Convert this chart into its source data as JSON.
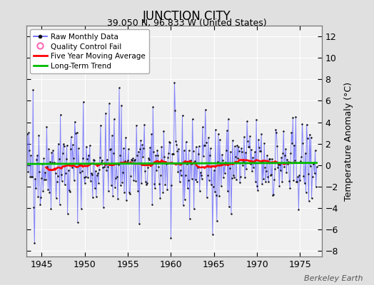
{
  "title": "JUNCTION CITY",
  "subtitle": "39.050 N, 96.833 W (United States)",
  "ylabel": "Temperature Anomaly (°C)",
  "watermark": "Berkeley Earth",
  "xlim": [
    1943.2,
    1977.5
  ],
  "ylim": [
    -8.5,
    13.0
  ],
  "yticks": [
    -8,
    -6,
    -4,
    -2,
    0,
    2,
    4,
    6,
    8,
    10,
    12
  ],
  "xticks": [
    1945,
    1950,
    1955,
    1960,
    1965,
    1970,
    1975
  ],
  "bg_color": "#e0e0e0",
  "plot_bg_color": "#f0f0f0",
  "grid_color": "#ffffff",
  "line_color": "#5555ff",
  "line_alpha": 0.7,
  "dot_color": "#111111",
  "ma_color": "#ff0000",
  "trend_color": "#00bb00",
  "qc_color": "#ff69b4",
  "legend_items": [
    "Raw Monthly Data",
    "Quality Control Fail",
    "Five Year Moving Average",
    "Long-Term Trend"
  ],
  "seed": 42,
  "n_years": 34,
  "start_year": 1943.0,
  "noise_scale": 2.0,
  "ma_window": 60
}
